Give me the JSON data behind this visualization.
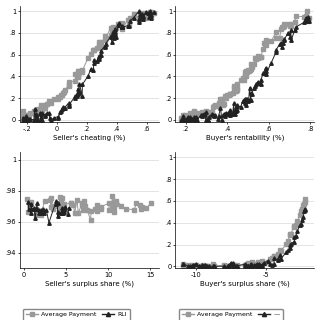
{
  "fig_width": 3.2,
  "fig_height": 3.2,
  "dpi": 100,
  "background_color": "#ffffff",
  "plots": [
    {
      "xlabel": "Seller's cheating (%)",
      "xlim": [
        -0.25,
        0.68
      ],
      "ylim": [
        -0.02,
        1.05
      ],
      "xticks": [
        -0.2,
        0.0,
        0.2,
        0.4,
        0.6
      ],
      "xtick_labels": [
        "-.2",
        "0",
        ".2",
        ".4",
        ".6"
      ],
      "yticks": [
        0.0,
        0.2,
        0.4,
        0.6,
        0.8,
        1.0
      ],
      "ytick_labels": [
        "0",
        ".2",
        ".4",
        ".6",
        ".8",
        "1"
      ]
    },
    {
      "xlabel": "Buyer's rentability (%)",
      "xlim": [
        0.15,
        0.82
      ],
      "ylim": [
        -0.02,
        1.05
      ],
      "xticks": [
        0.2,
        0.4,
        0.6,
        0.8
      ],
      "xtick_labels": [
        ".2",
        ".4",
        ".6",
        ".8"
      ],
      "yticks": [
        0.0,
        0.2,
        0.4,
        0.6,
        0.8,
        1.0
      ],
      "ytick_labels": [
        "0",
        ".2",
        ".4",
        ".6",
        ".8",
        "1"
      ]
    },
    {
      "xlabel": "Seller's surplus share (%)",
      "xlim": [
        -0.5,
        16.0
      ],
      "ylim": [
        0.93,
        1.005
      ],
      "xticks": [
        0,
        5,
        10,
        15
      ],
      "xtick_labels": [
        "0",
        "5",
        "10",
        "15"
      ],
      "yticks": [
        0.94,
        0.96,
        0.98,
        1.0
      ],
      "ytick_labels": [
        ".94",
        ".96",
        ".98",
        "1"
      ]
    },
    {
      "xlabel": "Buyer's surplus share (%)",
      "xlim": [
        -11.5,
        -1.5
      ],
      "ylim": [
        -0.02,
        1.05
      ],
      "xticks": [
        -10,
        -5
      ],
      "xtick_labels": [
        "-10",
        "-5"
      ],
      "yticks": [
        0.0,
        0.2,
        0.4,
        0.6,
        0.8,
        1.0
      ],
      "ytick_labels": [
        "0",
        ".2",
        ".4",
        ".6",
        ".8",
        "1"
      ]
    }
  ],
  "avg_color": "#999999",
  "rli_color": "#222222",
  "avg_marker": "s",
  "rli_marker": "^",
  "markersize": 2.5,
  "linewidth": 0.7
}
